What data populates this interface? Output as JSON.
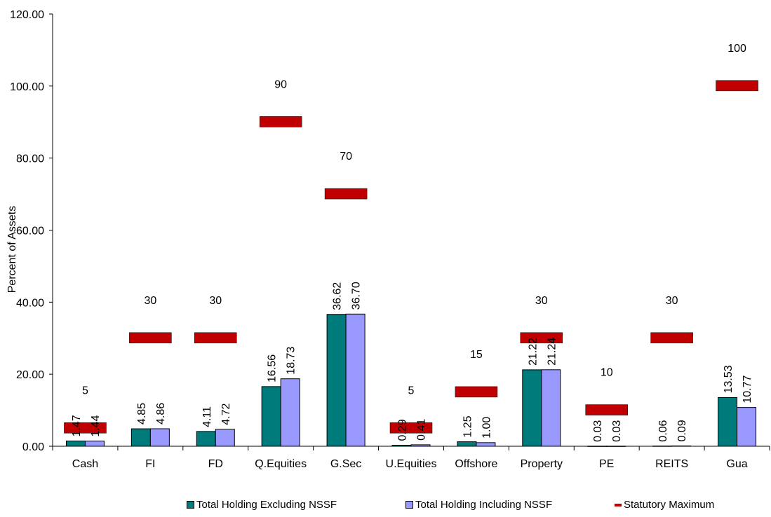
{
  "chart_data": {
    "type": "bar",
    "ylabel": "Percent of Assets",
    "ylim": [
      0,
      120
    ],
    "yticks": [
      "0.00",
      "20.00",
      "40.00",
      "60.00",
      "80.00",
      "100.00",
      "120.00"
    ],
    "categories": [
      "Cash",
      "FI",
      "FD",
      "Q.Equities",
      "G.Sec",
      "U.Equities",
      "Offshore",
      "Property",
      "PE",
      "REITS",
      "Gua"
    ],
    "series": [
      {
        "name": "Total Holding Excluding NSSF",
        "color": "#007b7b",
        "values": [
          1.47,
          4.85,
          4.11,
          16.56,
          36.62,
          0.29,
          1.25,
          21.22,
          0.03,
          0.06,
          13.53
        ],
        "labels": [
          "1.47",
          "4.85",
          "4.11",
          "16.56",
          "36.62",
          "0.29",
          "1.25",
          "21.22",
          "0.03",
          "0.06",
          "13.53"
        ]
      },
      {
        "name": "Total Holding Including NSSF",
        "color": "#9999ff",
        "values": [
          1.44,
          4.86,
          4.72,
          18.73,
          36.7,
          0.41,
          1.0,
          21.24,
          0.03,
          0.09,
          10.77
        ],
        "labels": [
          "1.44",
          "4.86",
          "4.72",
          "18.73",
          "36.70",
          "0.41",
          "1.00",
          "21.24",
          "0.03",
          "0.09",
          "10.77"
        ]
      },
      {
        "name": "Statutory Maximum",
        "color": "#c00000",
        "values": [
          5,
          30,
          30,
          90,
          70,
          5,
          15,
          30,
          10,
          30,
          100
        ],
        "labels": [
          "5",
          "30",
          "30",
          "90",
          "70",
          "5",
          "15",
          "30",
          "10",
          "30",
          "100"
        ]
      }
    ],
    "legend_position": "bottom"
  }
}
